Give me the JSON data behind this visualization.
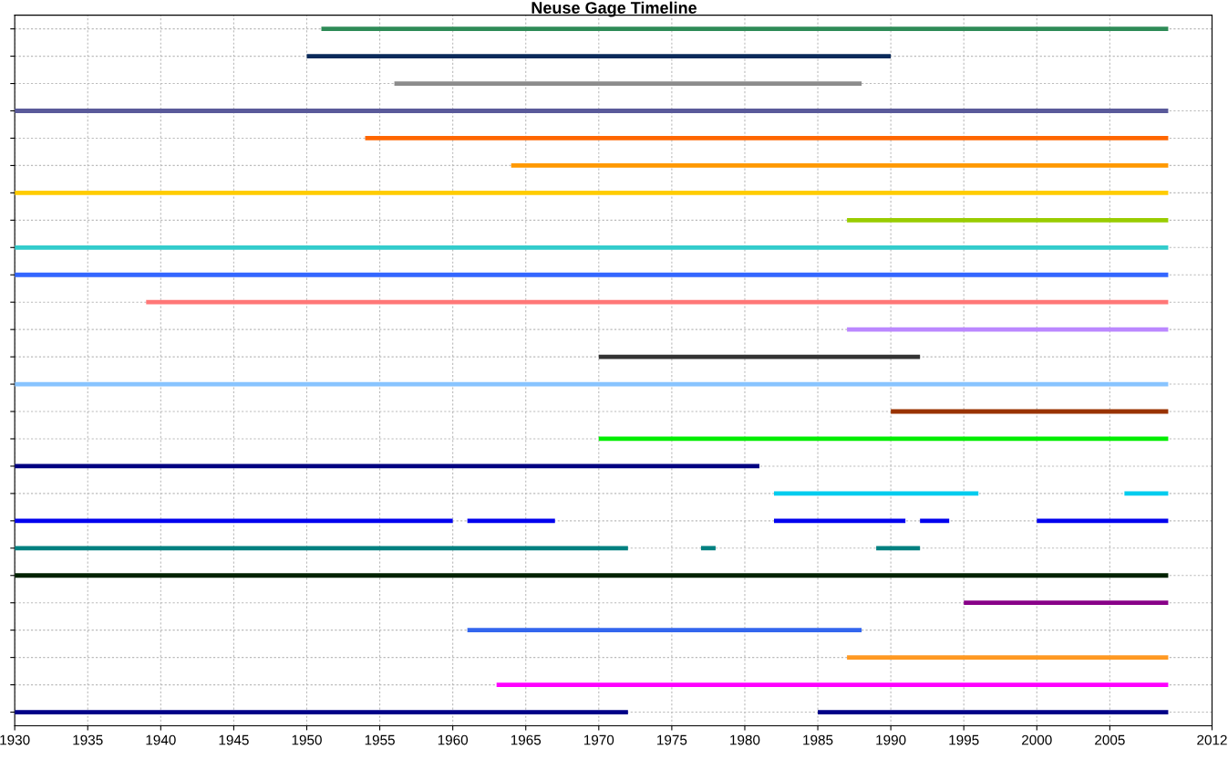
{
  "chart_data": {
    "type": "bar",
    "orientation": "horizontal",
    "title": "Neuse Gage Timeline",
    "categories": [
      null,
      null,
      null,
      null,
      null,
      null,
      null,
      null,
      null,
      null,
      null,
      null,
      null,
      null,
      null,
      null,
      null,
      null,
      null,
      null,
      null,
      null,
      null,
      null,
      null,
      null
    ],
    "series": [
      {
        "colors": [
          "#2e8b57",
          "#0a2a5a",
          "#8c8c8c",
          "#5a5a9a",
          "#ff6600",
          "#ff9900",
          "#ffcc00",
          "#99cc00",
          "#33cccc",
          "#3366ff",
          "#ff7777",
          "#bb88ff",
          "#333333",
          "#88c4ff",
          "#993300",
          "#00ee00",
          "#000080",
          "#00ccee",
          "#0000ee",
          "#008080",
          "#002200",
          "#880088",
          "#3366ee",
          "#ff9922",
          "#ff00ff",
          "#000088"
        ],
        "base": [
          1951,
          1950,
          1956,
          1930,
          1954,
          1964,
          1930,
          1987,
          1930,
          1930,
          1939,
          1987,
          1970,
          1930,
          1990,
          1970,
          1930,
          1982,
          1930,
          1930,
          1930,
          1995,
          1961,
          1987,
          1963,
          1930
        ],
        "values": [
          58,
          40,
          32,
          79,
          55,
          45,
          79,
          22,
          79,
          79,
          70,
          22,
          22,
          79,
          19,
          39,
          51,
          14,
          30,
          42,
          79,
          14,
          27,
          22,
          46,
          42
        ]
      },
      {
        "colors": [
          null,
          null,
          null,
          null,
          null,
          null,
          null,
          null,
          null,
          null,
          null,
          null,
          null,
          null,
          null,
          null,
          null,
          "#00ccee",
          "#0000ee",
          "#008080",
          null,
          null,
          null,
          null,
          null,
          "#000088"
        ],
        "base": [
          null,
          null,
          null,
          null,
          null,
          null,
          null,
          null,
          null,
          null,
          null,
          null,
          null,
          null,
          null,
          null,
          null,
          2006,
          1961,
          1977,
          null,
          null,
          null,
          null,
          null,
          1985
        ],
        "values": [
          null,
          null,
          null,
          null,
          null,
          null,
          null,
          null,
          null,
          null,
          null,
          null,
          null,
          null,
          null,
          null,
          null,
          3,
          6,
          1,
          null,
          null,
          null,
          null,
          null,
          24
        ]
      },
      {
        "colors": [
          null,
          null,
          null,
          null,
          null,
          null,
          null,
          null,
          null,
          null,
          null,
          null,
          null,
          null,
          null,
          null,
          null,
          null,
          "#0000ee",
          "#008080",
          null,
          null,
          null,
          null,
          null,
          null
        ],
        "base": [
          null,
          null,
          null,
          null,
          null,
          null,
          null,
          null,
          null,
          null,
          null,
          null,
          null,
          null,
          null,
          null,
          null,
          null,
          1982,
          1989,
          null,
          null,
          null,
          null,
          null,
          null
        ],
        "values": [
          null,
          null,
          null,
          null,
          null,
          null,
          null,
          null,
          null,
          null,
          null,
          null,
          null,
          null,
          null,
          null,
          null,
          null,
          9,
          3,
          null,
          null,
          null,
          null,
          null,
          null
        ]
      },
      {
        "colors": [
          null,
          null,
          null,
          null,
          null,
          null,
          null,
          null,
          null,
          null,
          null,
          null,
          null,
          null,
          null,
          null,
          null,
          null,
          "#0000ee",
          null,
          null,
          null,
          null,
          null,
          null,
          null
        ],
        "base": [
          null,
          null,
          null,
          null,
          null,
          null,
          null,
          null,
          null,
          null,
          null,
          null,
          null,
          null,
          null,
          null,
          null,
          null,
          1992,
          null,
          null,
          null,
          null,
          null,
          null,
          null
        ],
        "values": [
          null,
          null,
          null,
          null,
          null,
          null,
          null,
          null,
          null,
          null,
          null,
          null,
          null,
          null,
          null,
          null,
          null,
          null,
          2,
          null,
          null,
          null,
          null,
          null,
          null,
          null
        ]
      },
      {
        "colors": [
          null,
          null,
          null,
          null,
          null,
          null,
          null,
          null,
          null,
          null,
          null,
          null,
          null,
          null,
          null,
          null,
          null,
          null,
          "#0000ee",
          null,
          null,
          null,
          null,
          null,
          null,
          null
        ],
        "base": [
          null,
          null,
          null,
          null,
          null,
          null,
          null,
          null,
          null,
          null,
          null,
          null,
          null,
          null,
          null,
          null,
          null,
          null,
          2000,
          null,
          null,
          null,
          null,
          null,
          null,
          null
        ],
        "values": [
          null,
          null,
          null,
          null,
          null,
          null,
          null,
          null,
          null,
          null,
          null,
          null,
          null,
          null,
          null,
          null,
          null,
          null,
          9,
          null,
          null,
          null,
          null,
          null,
          null,
          null
        ]
      }
    ],
    "xlim": [
      1930,
      2012
    ],
    "xticks": [
      1930,
      1935,
      1940,
      1945,
      1950,
      1955,
      1960,
      1965,
      1970,
      1975,
      1980,
      1985,
      1990,
      1995,
      2000,
      2005,
      2012
    ],
    "grid": true,
    "tick_labels": "x"
  }
}
